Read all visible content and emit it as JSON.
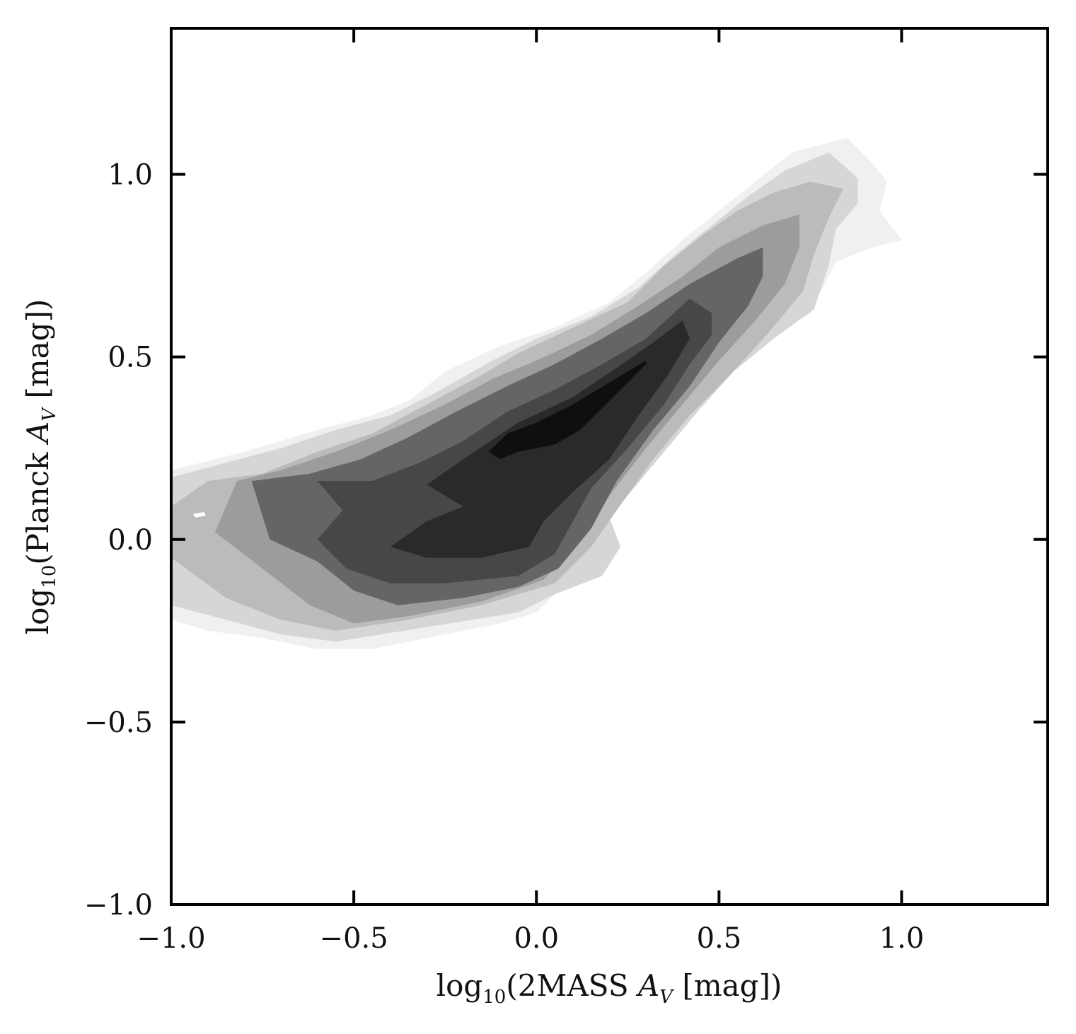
{
  "chart_data": {
    "type": "contour",
    "title": "",
    "xlabel": {
      "prefix": "log",
      "subscript": "10",
      "body": "(2MASS ",
      "symbol": "A",
      "symbol_sub": "V",
      "suffix": " [mag])"
    },
    "ylabel": {
      "prefix": "log",
      "subscript": "10",
      "body": "(Planck ",
      "symbol": "A",
      "symbol_sub": "V",
      "suffix": " [mag])"
    },
    "xlim": [
      -1.0,
      1.4
    ],
    "ylim": [
      -1.0,
      1.4
    ],
    "xticks": [
      -1.0,
      -0.5,
      0.0,
      0.5,
      1.0
    ],
    "yticks": [
      -1.0,
      -0.5,
      0.0,
      0.5,
      1.0
    ],
    "xtick_labels": [
      "−1.0",
      "−0.5",
      "0.0",
      "0.5",
      "1.0"
    ],
    "ytick_labels": [
      "−1.0",
      "−0.5",
      "0.0",
      "0.5",
      "1.0"
    ],
    "grid": false,
    "colormap": "greys",
    "levels": [
      {
        "color": "#f0f0f0",
        "polygon": [
          [
            -1.0,
            0.19
          ],
          [
            -0.8,
            0.24
          ],
          [
            -0.6,
            0.3
          ],
          [
            -0.45,
            0.34
          ],
          [
            -0.35,
            0.38
          ],
          [
            -0.25,
            0.46
          ],
          [
            -0.1,
            0.53
          ],
          [
            0.05,
            0.58
          ],
          [
            0.2,
            0.65
          ],
          [
            0.3,
            0.73
          ],
          [
            0.4,
            0.82
          ],
          [
            0.5,
            0.9
          ],
          [
            0.6,
            0.98
          ],
          [
            0.7,
            1.06
          ],
          [
            0.85,
            1.1
          ],
          [
            0.92,
            1.03
          ],
          [
            0.96,
            0.98
          ],
          [
            0.94,
            0.9
          ],
          [
            1.0,
            0.82
          ],
          [
            0.92,
            0.8
          ],
          [
            0.82,
            0.76
          ],
          [
            0.75,
            0.62
          ],
          [
            0.62,
            0.54
          ],
          [
            0.5,
            0.45
          ],
          [
            0.4,
            0.35
          ],
          [
            0.3,
            0.22
          ],
          [
            0.22,
            0.1
          ],
          [
            0.15,
            0.0
          ],
          [
            0.08,
            -0.12
          ],
          [
            0.0,
            -0.2
          ],
          [
            -0.1,
            -0.23
          ],
          [
            -0.25,
            -0.26
          ],
          [
            -0.45,
            -0.3
          ],
          [
            -0.6,
            -0.3
          ],
          [
            -0.75,
            -0.27
          ],
          [
            -0.9,
            -0.25
          ],
          [
            -1.0,
            -0.22
          ]
        ]
      },
      {
        "color": "#d6d6d6",
        "polygon": [
          [
            -1.0,
            0.17
          ],
          [
            -0.85,
            0.21
          ],
          [
            -0.7,
            0.25
          ],
          [
            -0.55,
            0.3
          ],
          [
            -0.4,
            0.34
          ],
          [
            -0.28,
            0.4
          ],
          [
            -0.12,
            0.49
          ],
          [
            0.0,
            0.55
          ],
          [
            0.15,
            0.61
          ],
          [
            0.28,
            0.69
          ],
          [
            0.38,
            0.78
          ],
          [
            0.48,
            0.86
          ],
          [
            0.58,
            0.94
          ],
          [
            0.68,
            1.01
          ],
          [
            0.8,
            1.06
          ],
          [
            0.88,
            0.99
          ],
          [
            0.88,
            0.92
          ],
          [
            0.82,
            0.85
          ],
          [
            0.8,
            0.75
          ],
          [
            0.76,
            0.63
          ],
          [
            0.65,
            0.55
          ],
          [
            0.54,
            0.46
          ],
          [
            0.45,
            0.36
          ],
          [
            0.35,
            0.24
          ],
          [
            0.25,
            0.12
          ],
          [
            0.2,
            0.06
          ],
          [
            0.23,
            -0.02
          ],
          [
            0.18,
            -0.1
          ],
          [
            0.05,
            -0.15
          ],
          [
            -0.05,
            -0.2
          ],
          [
            -0.3,
            -0.24
          ],
          [
            -0.55,
            -0.28
          ],
          [
            -0.7,
            -0.26
          ],
          [
            -0.85,
            -0.22
          ],
          [
            -1.0,
            -0.18
          ]
        ]
      },
      {
        "color": "#bbbbbb",
        "polygon": [
          [
            -1.0,
            0.09
          ],
          [
            -0.9,
            0.16
          ],
          [
            -0.75,
            0.18
          ],
          [
            -0.6,
            0.24
          ],
          [
            -0.45,
            0.29
          ],
          [
            -0.3,
            0.37
          ],
          [
            -0.15,
            0.45
          ],
          [
            -0.05,
            0.51
          ],
          [
            0.1,
            0.58
          ],
          [
            0.25,
            0.65
          ],
          [
            0.35,
            0.75
          ],
          [
            0.45,
            0.83
          ],
          [
            0.55,
            0.9
          ],
          [
            0.65,
            0.95
          ],
          [
            0.75,
            0.98
          ],
          [
            0.84,
            0.96
          ],
          [
            0.8,
            0.88
          ],
          [
            0.76,
            0.78
          ],
          [
            0.73,
            0.68
          ],
          [
            0.63,
            0.56
          ],
          [
            0.53,
            0.45
          ],
          [
            0.42,
            0.34
          ],
          [
            0.32,
            0.22
          ],
          [
            0.22,
            0.08
          ],
          [
            0.15,
            -0.02
          ],
          [
            0.05,
            -0.12
          ],
          [
            -0.15,
            -0.18
          ],
          [
            -0.35,
            -0.22
          ],
          [
            -0.55,
            -0.25
          ],
          [
            -0.7,
            -0.22
          ],
          [
            -0.85,
            -0.16
          ],
          [
            -1.0,
            -0.05
          ]
        ]
      },
      {
        "color": "#9c9c9c",
        "polygon": [
          [
            -0.88,
            0.02
          ],
          [
            -0.82,
            0.16
          ],
          [
            -0.7,
            0.19
          ],
          [
            -0.55,
            0.24
          ],
          [
            -0.4,
            0.3
          ],
          [
            -0.25,
            0.37
          ],
          [
            -0.12,
            0.44
          ],
          [
            0.0,
            0.49
          ],
          [
            0.15,
            0.56
          ],
          [
            0.28,
            0.64
          ],
          [
            0.4,
            0.72
          ],
          [
            0.5,
            0.8
          ],
          [
            0.62,
            0.86
          ],
          [
            0.72,
            0.89
          ],
          [
            0.72,
            0.8
          ],
          [
            0.68,
            0.7
          ],
          [
            0.6,
            0.6
          ],
          [
            0.5,
            0.49
          ],
          [
            0.4,
            0.37
          ],
          [
            0.3,
            0.25
          ],
          [
            0.2,
            0.12
          ],
          [
            0.12,
            0.0
          ],
          [
            0.02,
            -0.11
          ],
          [
            -0.15,
            -0.17
          ],
          [
            -0.35,
            -0.21
          ],
          [
            -0.5,
            -0.23
          ],
          [
            -0.62,
            -0.18
          ],
          [
            -0.75,
            -0.08
          ]
        ]
      },
      {
        "color": "#656565",
        "polygon": [
          [
            -0.73,
            0.0
          ],
          [
            -0.78,
            0.16
          ],
          [
            -0.62,
            0.18
          ],
          [
            -0.48,
            0.22
          ],
          [
            -0.35,
            0.28
          ],
          [
            -0.22,
            0.35
          ],
          [
            -0.08,
            0.42
          ],
          [
            0.05,
            0.48
          ],
          [
            0.18,
            0.55
          ],
          [
            0.3,
            0.62
          ],
          [
            0.42,
            0.7
          ],
          [
            0.55,
            0.77
          ],
          [
            0.62,
            0.8
          ],
          [
            0.62,
            0.72
          ],
          [
            0.58,
            0.64
          ],
          [
            0.5,
            0.54
          ],
          [
            0.42,
            0.42
          ],
          [
            0.32,
            0.3
          ],
          [
            0.22,
            0.16
          ],
          [
            0.15,
            0.03
          ],
          [
            0.06,
            -0.08
          ],
          [
            -0.05,
            -0.13
          ],
          [
            -0.2,
            -0.16
          ],
          [
            -0.38,
            -0.18
          ],
          [
            -0.5,
            -0.14
          ],
          [
            -0.6,
            -0.06
          ]
        ]
      },
      {
        "color": "#474747",
        "polygon": [
          [
            -0.6,
            0.0
          ],
          [
            -0.53,
            0.08
          ],
          [
            -0.6,
            0.16
          ],
          [
            -0.45,
            0.16
          ],
          [
            -0.32,
            0.21
          ],
          [
            -0.2,
            0.27
          ],
          [
            -0.08,
            0.35
          ],
          [
            0.05,
            0.41
          ],
          [
            0.18,
            0.48
          ],
          [
            0.3,
            0.55
          ],
          [
            0.42,
            0.66
          ],
          [
            0.48,
            0.62
          ],
          [
            0.48,
            0.56
          ],
          [
            0.42,
            0.48
          ],
          [
            0.35,
            0.37
          ],
          [
            0.25,
            0.25
          ],
          [
            0.15,
            0.14
          ],
          [
            0.1,
            0.05
          ],
          [
            0.05,
            -0.04
          ],
          [
            -0.05,
            -0.1
          ],
          [
            -0.25,
            -0.12
          ],
          [
            -0.4,
            -0.12
          ],
          [
            -0.52,
            -0.08
          ]
        ]
      },
      {
        "color": "#2a2a2a",
        "polygon": [
          [
            -0.4,
            -0.02
          ],
          [
            -0.3,
            0.05
          ],
          [
            -0.2,
            0.09
          ],
          [
            -0.3,
            0.15
          ],
          [
            -0.2,
            0.22
          ],
          [
            -0.05,
            0.32
          ],
          [
            0.1,
            0.39
          ],
          [
            0.22,
            0.47
          ],
          [
            0.32,
            0.54
          ],
          [
            0.4,
            0.6
          ],
          [
            0.42,
            0.55
          ],
          [
            0.36,
            0.45
          ],
          [
            0.28,
            0.34
          ],
          [
            0.2,
            0.22
          ],
          [
            0.1,
            0.13
          ],
          [
            0.02,
            0.05
          ],
          [
            -0.02,
            -0.02
          ],
          [
            -0.15,
            -0.05
          ],
          [
            -0.3,
            -0.05
          ]
        ]
      },
      {
        "color": "#0f0f0f",
        "polygon": [
          [
            -0.13,
            0.24
          ],
          [
            -0.08,
            0.29
          ],
          [
            0.0,
            0.32
          ],
          [
            0.1,
            0.37
          ],
          [
            0.2,
            0.43
          ],
          [
            0.3,
            0.49
          ],
          [
            0.3,
            0.48
          ],
          [
            0.25,
            0.43
          ],
          [
            0.18,
            0.36
          ],
          [
            0.12,
            0.3
          ],
          [
            0.05,
            0.26
          ],
          [
            -0.05,
            0.24
          ],
          [
            -0.1,
            0.22
          ]
        ]
      }
    ],
    "islands": [
      {
        "color": "#ffffff",
        "polygon": [
          [
            -0.94,
            0.07
          ],
          [
            -0.91,
            0.075
          ],
          [
            -0.905,
            0.065
          ],
          [
            -0.935,
            0.06
          ]
        ]
      }
    ]
  }
}
